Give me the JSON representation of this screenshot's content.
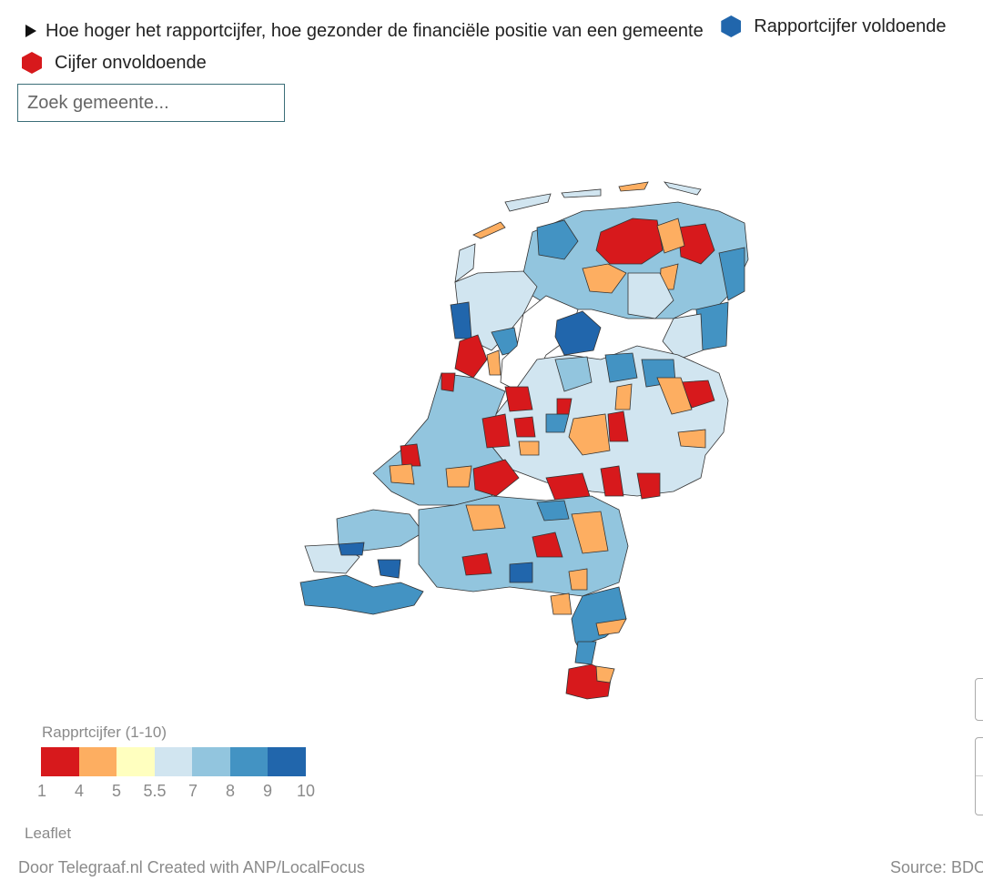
{
  "legend": {
    "note": "Hoe hoger het rapportcijfer, hoe gezonder de financiële positie van een gemeente",
    "good_label": "Rapportcijfer voldoende",
    "good_color": "#2166ac",
    "bad_label": "Cijfer onvoldoende",
    "bad_color": "#d7191c"
  },
  "search": {
    "placeholder": "Zoek gemeente..."
  },
  "scale": {
    "title": "Rapprtcijfer (1-10)",
    "colors": [
      "#d7191c",
      "#fdae61",
      "#ffffbf",
      "#d1e5f0",
      "#92c5de",
      "#4393c3",
      "#2166ac"
    ],
    "ticks": [
      "1",
      "4",
      "5",
      "5.5",
      "7",
      "8",
      "9",
      "10"
    ]
  },
  "attribution": {
    "leaflet": "Leaflet",
    "credit": "Door Telegraaf.nl  Created with ANP/LocalFocus",
    "source": "Source: BDO"
  },
  "map": {
    "colors": {
      "c1": "#d7191c",
      "c4": "#fdae61",
      "c5": "#ffffbf",
      "c55": "#d1e5f0",
      "c7": "#92c5de",
      "c8": "#4393c3",
      "c9": "#2166ac"
    }
  }
}
